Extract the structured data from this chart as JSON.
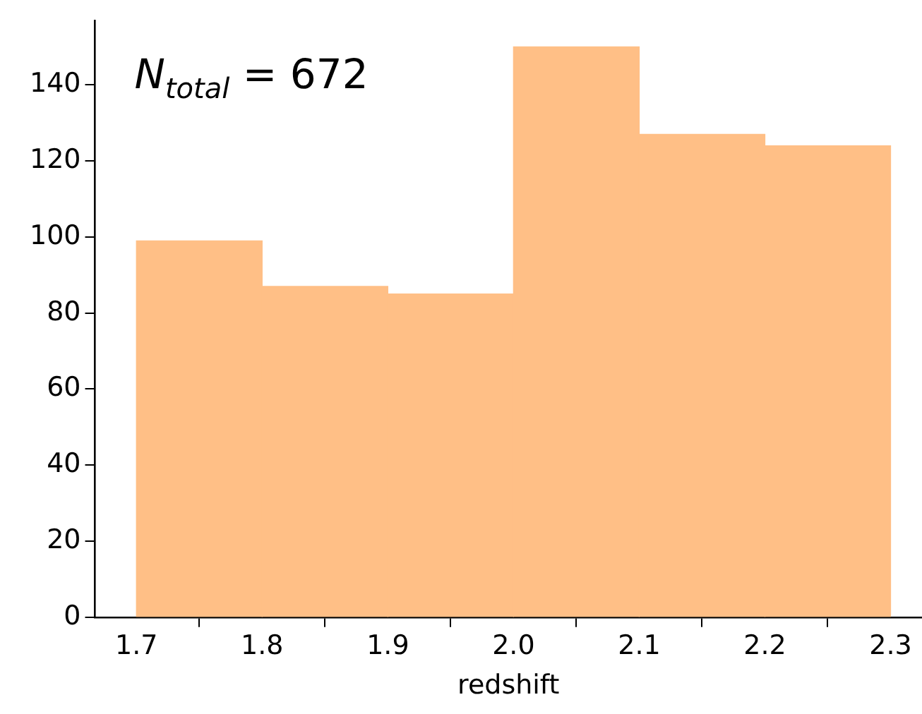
{
  "chart_data": {
    "type": "histogram",
    "xlabel": "redshift",
    "bins": [
      1.7,
      1.8,
      1.9,
      2.0,
      2.1,
      2.2,
      2.3
    ],
    "values": [
      99,
      87,
      85,
      150,
      127,
      124
    ],
    "color": "#ffbf86",
    "xlim": [
      1.667,
      2.325
    ],
    "xticks": [
      1.7,
      1.8,
      1.9,
      {
        "value": 2,
        "label": "2.0"
      },
      2.1,
      2.2,
      2.3
    ],
    "ylim": [
      0,
      157
    ],
    "yticks": [
      0,
      20,
      40,
      60,
      80,
      100,
      120,
      140
    ],
    "grid": false,
    "legend": false,
    "annotations": [
      "N$_{total}$ = 672"
    ]
  }
}
